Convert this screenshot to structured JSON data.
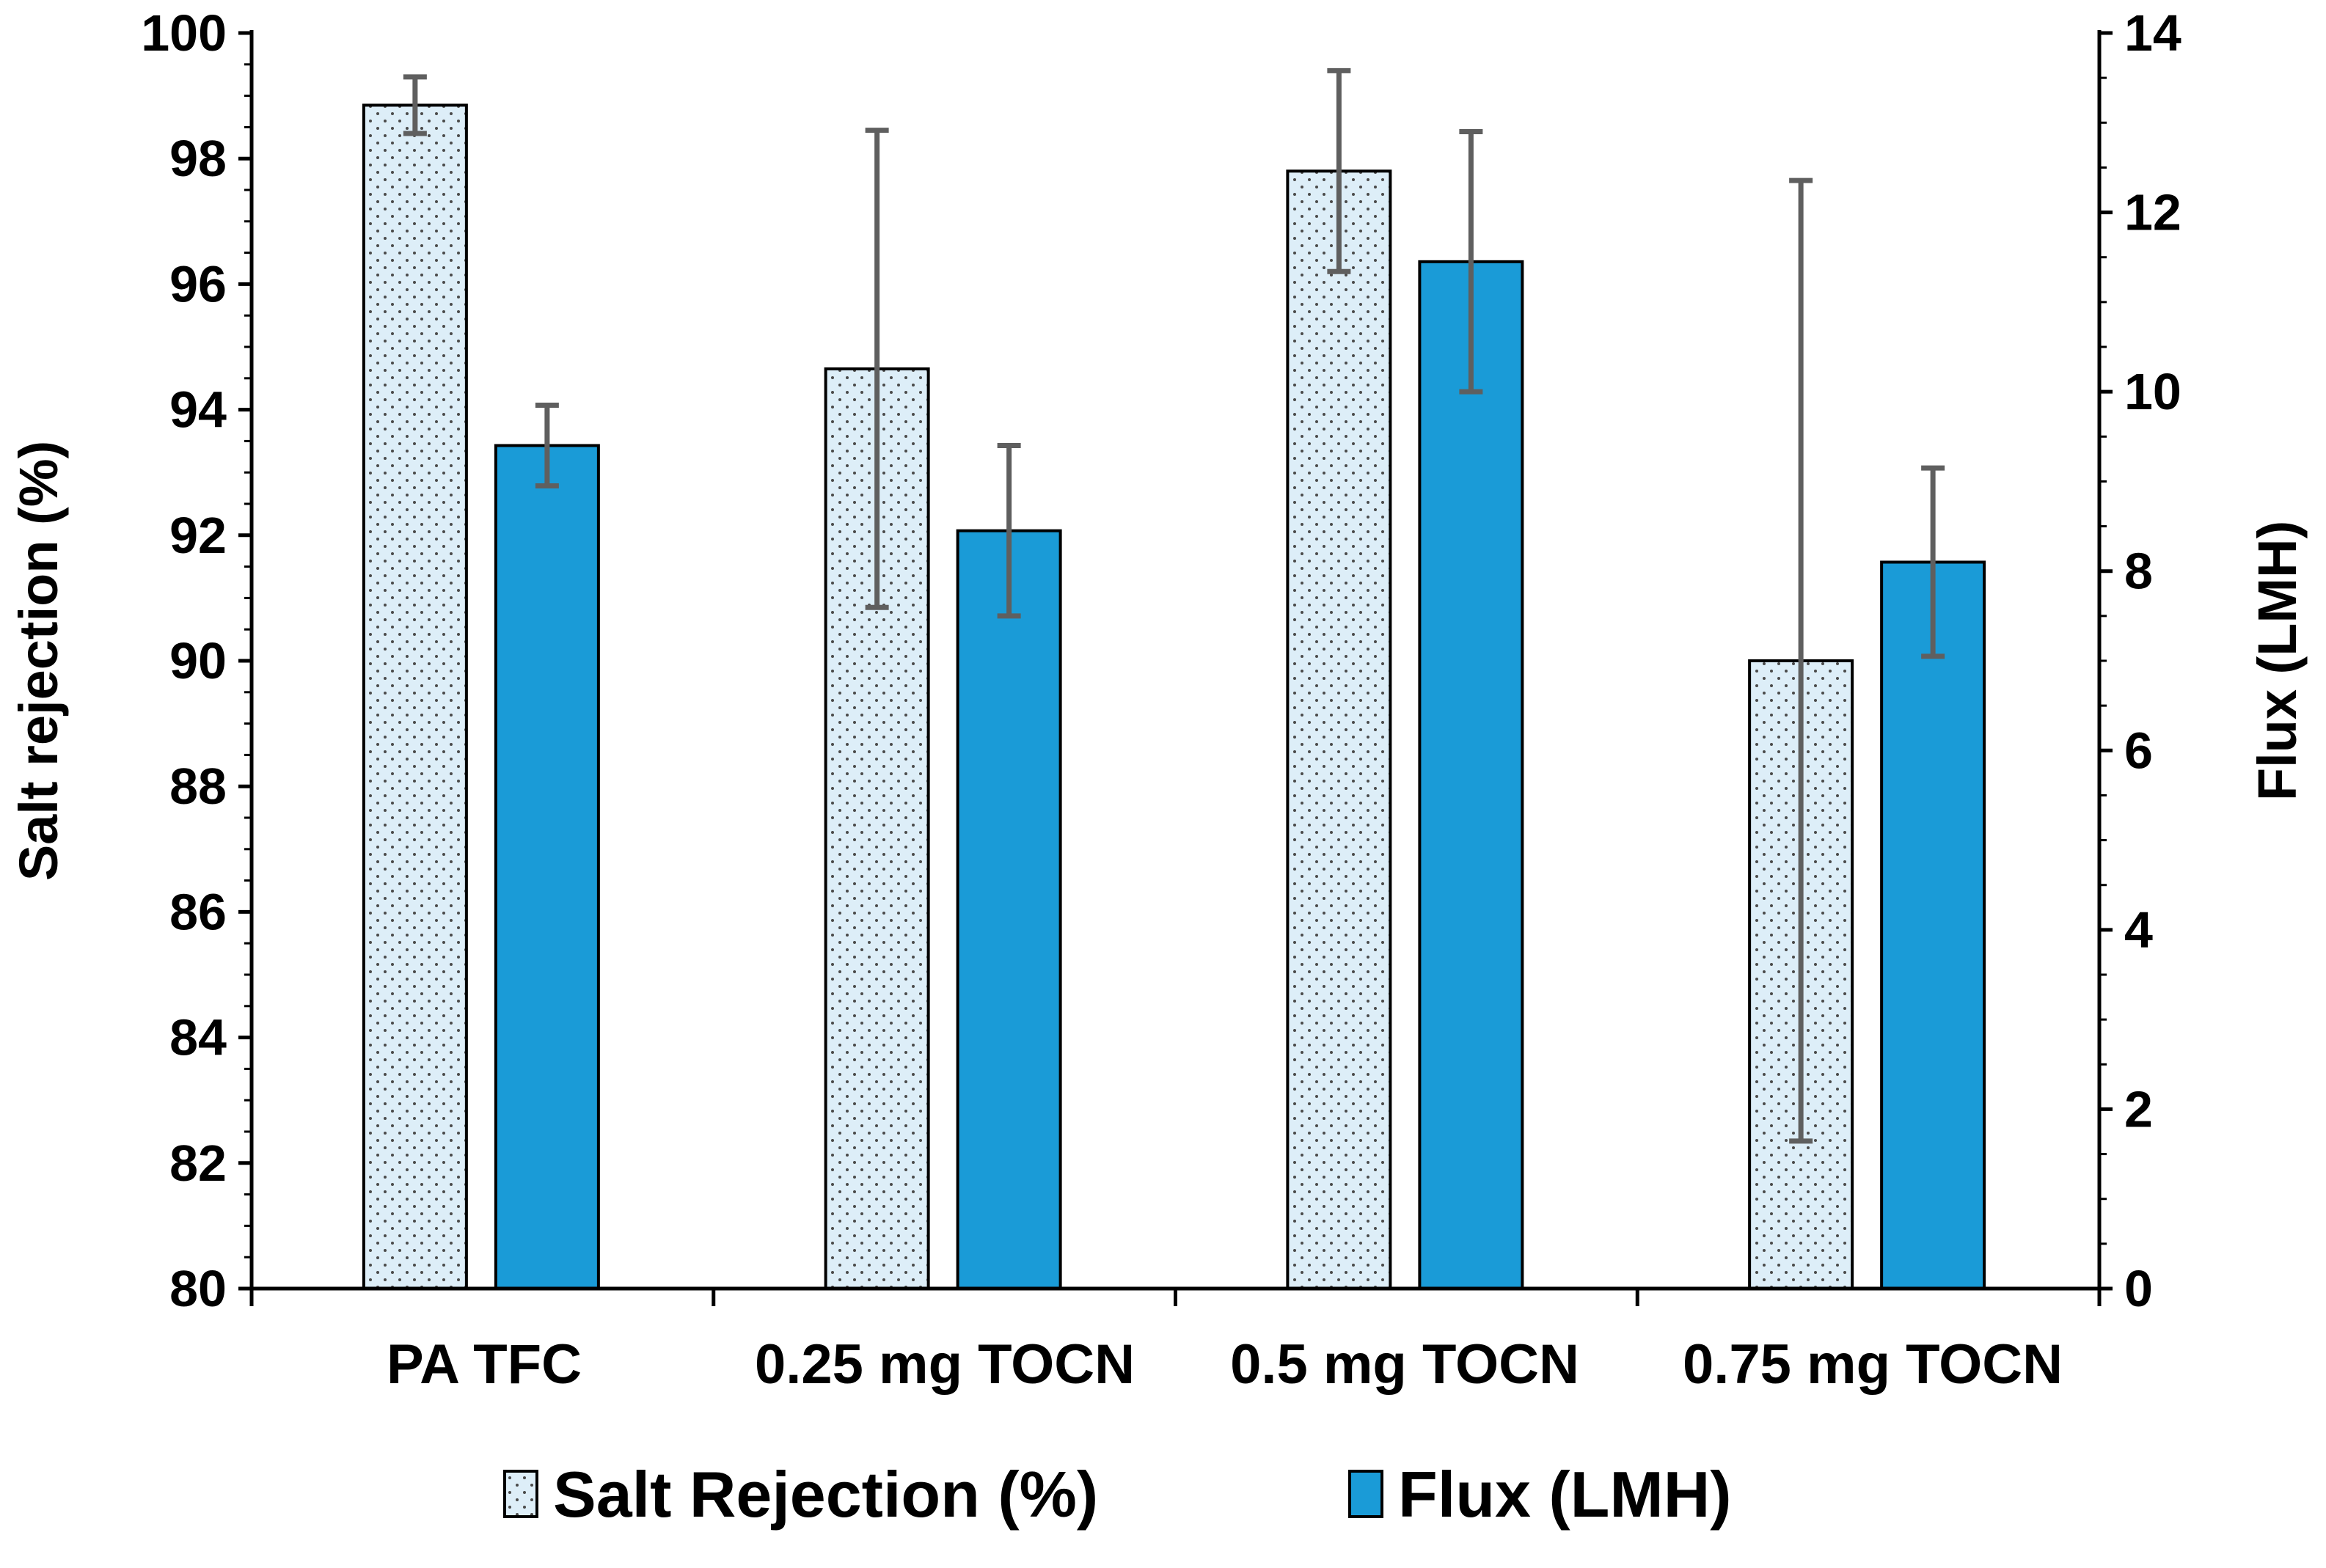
{
  "chart_data": {
    "type": "bar",
    "categories": [
      "PA TFC",
      "0.25 mg TOCN",
      "0.5 mg TOCN",
      "0.75 mg TOCN"
    ],
    "series": [
      {
        "name": "Salt Rejection (%)",
        "axis": "left",
        "values": [
          98.85,
          94.65,
          97.8,
          90.0
        ],
        "errors": [
          0.45,
          3.8,
          1.6,
          7.65
        ],
        "fill": "#ddeef8",
        "pattern": "dots"
      },
      {
        "name": "Flux (LMH)",
        "axis": "right",
        "values": [
          9.4,
          8.45,
          11.45,
          8.1
        ],
        "errors": [
          0.45,
          0.95,
          1.45,
          1.05
        ],
        "fill": "#1a9bd7",
        "pattern": "solid"
      }
    ],
    "y_left": {
      "label": "Salt rejection (%)",
      "ylim": [
        80,
        100
      ],
      "ticks": [
        "80",
        "82",
        "84",
        "86",
        "88",
        "90",
        "92",
        "94",
        "96",
        "98",
        "100"
      ]
    },
    "y_right": {
      "label": "Flux (LMH)",
      "ylim": [
        0,
        14
      ],
      "ticks": [
        "0",
        "2",
        "4",
        "6",
        "8",
        "10",
        "12",
        "14"
      ]
    },
    "legend": {
      "position": "bottom-center",
      "entries": [
        "Salt Rejection (%)",
        "Flux (LMH)"
      ]
    },
    "colors": {
      "error_bar": "#5f5f5f",
      "axis": "#000000",
      "bar_outline": "#000000"
    }
  }
}
